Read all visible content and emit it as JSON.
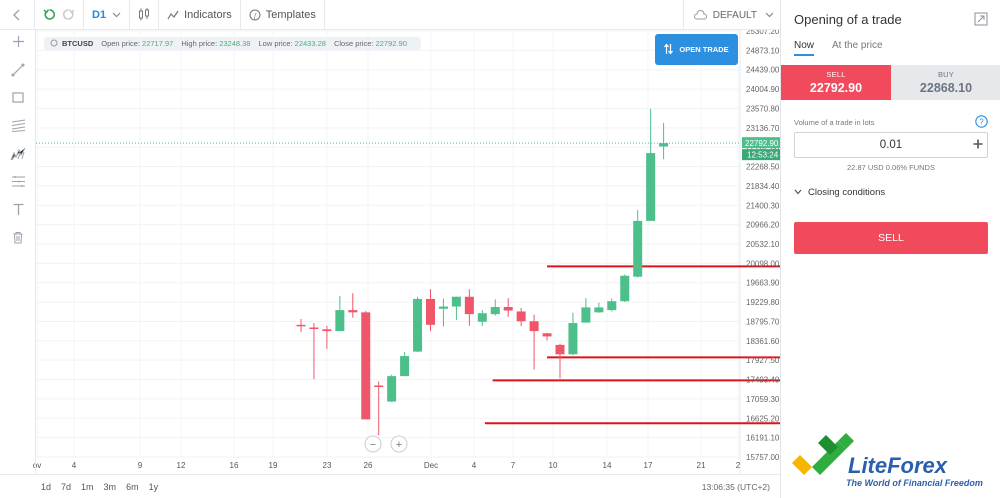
{
  "toolbar": {
    "timeframe": "D1",
    "indicators_label": "Indicators",
    "templates_label": "Templates",
    "layout_label": "DEFAULT"
  },
  "left_tools": [
    "crosshair-icon",
    "trendline-icon",
    "rectangle-icon",
    "fib-icon",
    "pattern-icon",
    "ruler-icon",
    "text-icon",
    "trash-icon"
  ],
  "info_bar": {
    "symbol": "BTCUSD",
    "open_label": "Open price:",
    "open_value": "22717.97",
    "high_label": "High price:",
    "high_value": "23248.38",
    "low_label": "Low price:",
    "low_value": "22433.28",
    "close_label": "Close price:",
    "close_value": "22792.90"
  },
  "open_trade_label": "OPEN TRADE",
  "chart_data": {
    "type": "candlestick",
    "y_ticks": [
      "25307.20",
      "24873.10",
      "24439.00",
      "24004.90",
      "23570.80",
      "23136.70",
      "22702.60",
      "22268.50",
      "21834.40",
      "21400.30",
      "20966.20",
      "20532.10",
      "20098.00",
      "19663.90",
      "19229.80",
      "18795.70",
      "18361.60",
      "17927.50",
      "17493.40",
      "17059.30",
      "16625.20",
      "16191.10",
      "15757.00"
    ],
    "ylim": [
      15757.0,
      25307.2
    ],
    "x_ticks": [
      "ov",
      "4",
      "9",
      "12",
      "16",
      "19",
      "23",
      "26",
      "Dec",
      "4",
      "7",
      "10",
      "14",
      "17",
      "21",
      "2"
    ],
    "current_price": "22792.90",
    "countdown": "12:53:24",
    "candles": [
      {
        "o": 18720,
        "h": 18850,
        "l": 18560,
        "c": 18710
      },
      {
        "o": 18660,
        "h": 18760,
        "l": 17500,
        "c": 18630
      },
      {
        "o": 18620,
        "h": 18700,
        "l": 18180,
        "c": 18580
      },
      {
        "o": 18580,
        "h": 19370,
        "l": 18580,
        "c": 19050
      },
      {
        "o": 19050,
        "h": 19430,
        "l": 18880,
        "c": 19000
      },
      {
        "o": 19000,
        "h": 19030,
        "l": 16600,
        "c": 16600
      },
      {
        "o": 17360,
        "h": 17450,
        "l": 16240,
        "c": 17340
      },
      {
        "o": 17000,
        "h": 17600,
        "l": 16990,
        "c": 17570
      },
      {
        "o": 17570,
        "h": 18110,
        "l": 17570,
        "c": 18020
      },
      {
        "o": 18120,
        "h": 19350,
        "l": 18110,
        "c": 19300
      },
      {
        "o": 19300,
        "h": 19520,
        "l": 18580,
        "c": 18720
      },
      {
        "o": 19080,
        "h": 19310,
        "l": 18680,
        "c": 19130
      },
      {
        "o": 19130,
        "h": 19350,
        "l": 18830,
        "c": 19350
      },
      {
        "o": 19350,
        "h": 19520,
        "l": 18700,
        "c": 18960
      },
      {
        "o": 18790,
        "h": 19050,
        "l": 18690,
        "c": 18980
      },
      {
        "o": 18960,
        "h": 19290,
        "l": 18930,
        "c": 19120
      },
      {
        "o": 19120,
        "h": 19320,
        "l": 18900,
        "c": 19040
      },
      {
        "o": 19020,
        "h": 19100,
        "l": 18690,
        "c": 18800
      },
      {
        "o": 18800,
        "h": 18950,
        "l": 17720,
        "c": 18580
      },
      {
        "o": 18530,
        "h": 18540,
        "l": 18370,
        "c": 18460
      },
      {
        "o": 18270,
        "h": 18300,
        "l": 17520,
        "c": 18060
      },
      {
        "o": 18060,
        "h": 18990,
        "l": 18040,
        "c": 18760
      },
      {
        "o": 18770,
        "h": 19320,
        "l": 18780,
        "c": 19110
      },
      {
        "o": 19000,
        "h": 19220,
        "l": 18990,
        "c": 19110
      },
      {
        "o": 19050,
        "h": 19310,
        "l": 19020,
        "c": 19250
      },
      {
        "o": 19250,
        "h": 19850,
        "l": 19230,
        "c": 19820
      },
      {
        "o": 19800,
        "h": 21290,
        "l": 19780,
        "c": 21050
      },
      {
        "o": 21050,
        "h": 23560,
        "l": 21060,
        "c": 22570
      },
      {
        "o": 22717.97,
        "h": 23248.38,
        "l": 22433.28,
        "c": 22792.9
      }
    ],
    "lines": [
      {
        "from": 19,
        "to": 54,
        "y": 20030
      },
      {
        "from": 19,
        "to": 54,
        "y": 17990
      },
      {
        "from": 14.8,
        "to": 54,
        "y": 17475
      },
      {
        "from": 14.2,
        "to": 54,
        "y": 16515
      }
    ]
  },
  "zoom": {
    "minus": "−",
    "plus": "+"
  },
  "ranges": [
    "1d",
    "7d",
    "1m",
    "3m",
    "6m",
    "1y"
  ],
  "clock": "13:06:35 (UTC+2)",
  "panel": {
    "title": "Opening of a trade",
    "tab_now": "Now",
    "tab_at_price": "At the price",
    "sell_label": "SELL",
    "sell_price": "22792.90",
    "buy_label": "BUY",
    "buy_price": "22868.10",
    "volume_label": "Volume of a trade in lots",
    "volume_value": "0.01",
    "funds_text": "22.87 USD  0.06% FUNDS",
    "closing_label": "Closing conditions",
    "sell_button": "SELL"
  },
  "logo": {
    "brand": "LiteForex",
    "slogan": "The World of Financial Freedom"
  },
  "colors": {
    "up": "#4cbf8a",
    "down": "#f0566a",
    "level_line": "#d9141a",
    "accent": "#2d8fe0"
  }
}
